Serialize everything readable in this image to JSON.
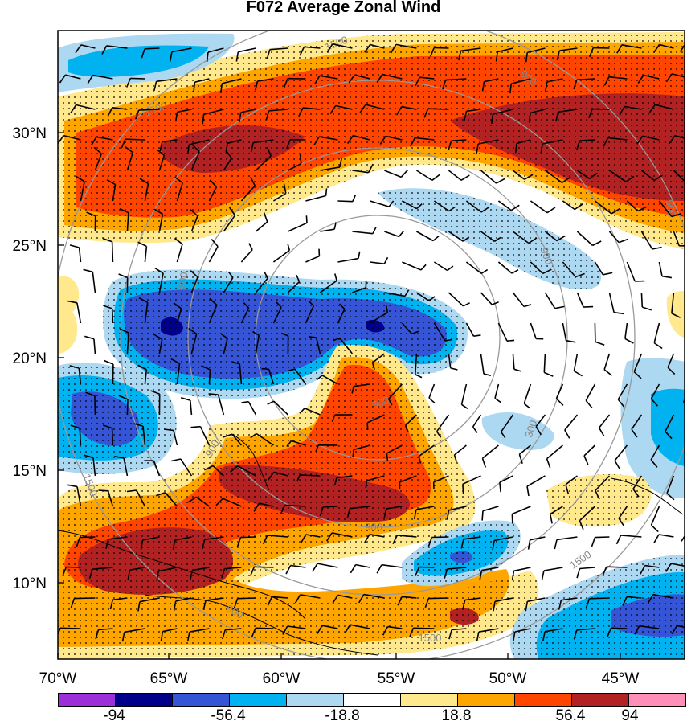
{
  "title": "F072 Average Zonal Wind",
  "lat_labels": [
    "30°N",
    "25°N",
    "20°N",
    "15°N",
    "10°N"
  ],
  "lon_labels": [
    "70°W",
    "65°W",
    "60°W",
    "55°W",
    "50°W",
    "45°W"
  ],
  "range_ring_labels": [
    "300",
    "900",
    "1500"
  ],
  "colorbar": {
    "colors": [
      "#9b30d9",
      "#00008b",
      "#3654d6",
      "#00b2f0",
      "#add8f2",
      "#ffffff",
      "#ffe98c",
      "#ffa500",
      "#ff4500",
      "#b22222",
      "#ff8fb8"
    ],
    "tick_labels": [
      "-94",
      "-56.4",
      "-18.8",
      "18.8",
      "56.4",
      "94"
    ]
  }
}
